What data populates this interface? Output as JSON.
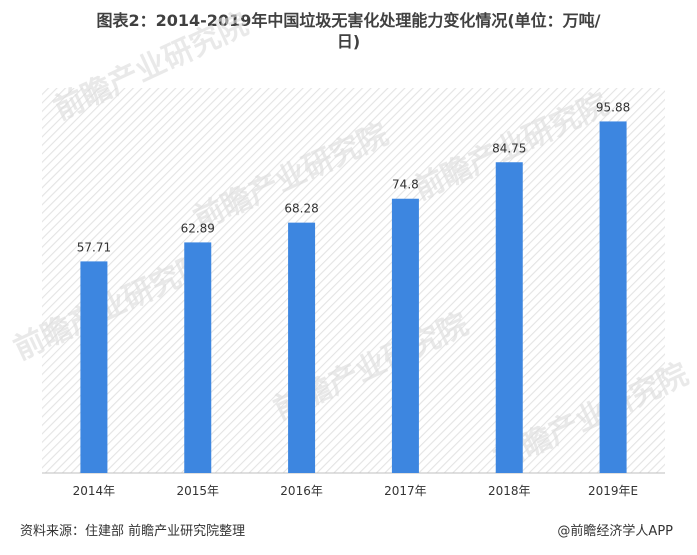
{
  "title_line1": "图表2：2014-2019年中国垃圾无害化处理能力变化情况(单位：万吨/",
  "title_line2": "日)",
  "source": "资料来源：住建部 前瞻产业研究院整理",
  "credit": "@前瞻经济学人APP",
  "watermark": "前瞻产业研究院",
  "colors": {
    "bar": "#3d86e0",
    "hatch": "#e2e2e2",
    "axis": "#bfbfbf"
  },
  "chart_data": {
    "type": "bar",
    "categories": [
      "2014年",
      "2015年",
      "2016年",
      "2017年",
      "2018年",
      "2019年E"
    ],
    "values": [
      57.71,
      62.89,
      68.28,
      74.8,
      84.75,
      95.88
    ],
    "value_labels": [
      "57.71",
      "62.89",
      "68.28",
      "74.8",
      "84.75",
      "95.88"
    ],
    "ylim": [
      0,
      105
    ],
    "grid": false,
    "legend": "none"
  }
}
